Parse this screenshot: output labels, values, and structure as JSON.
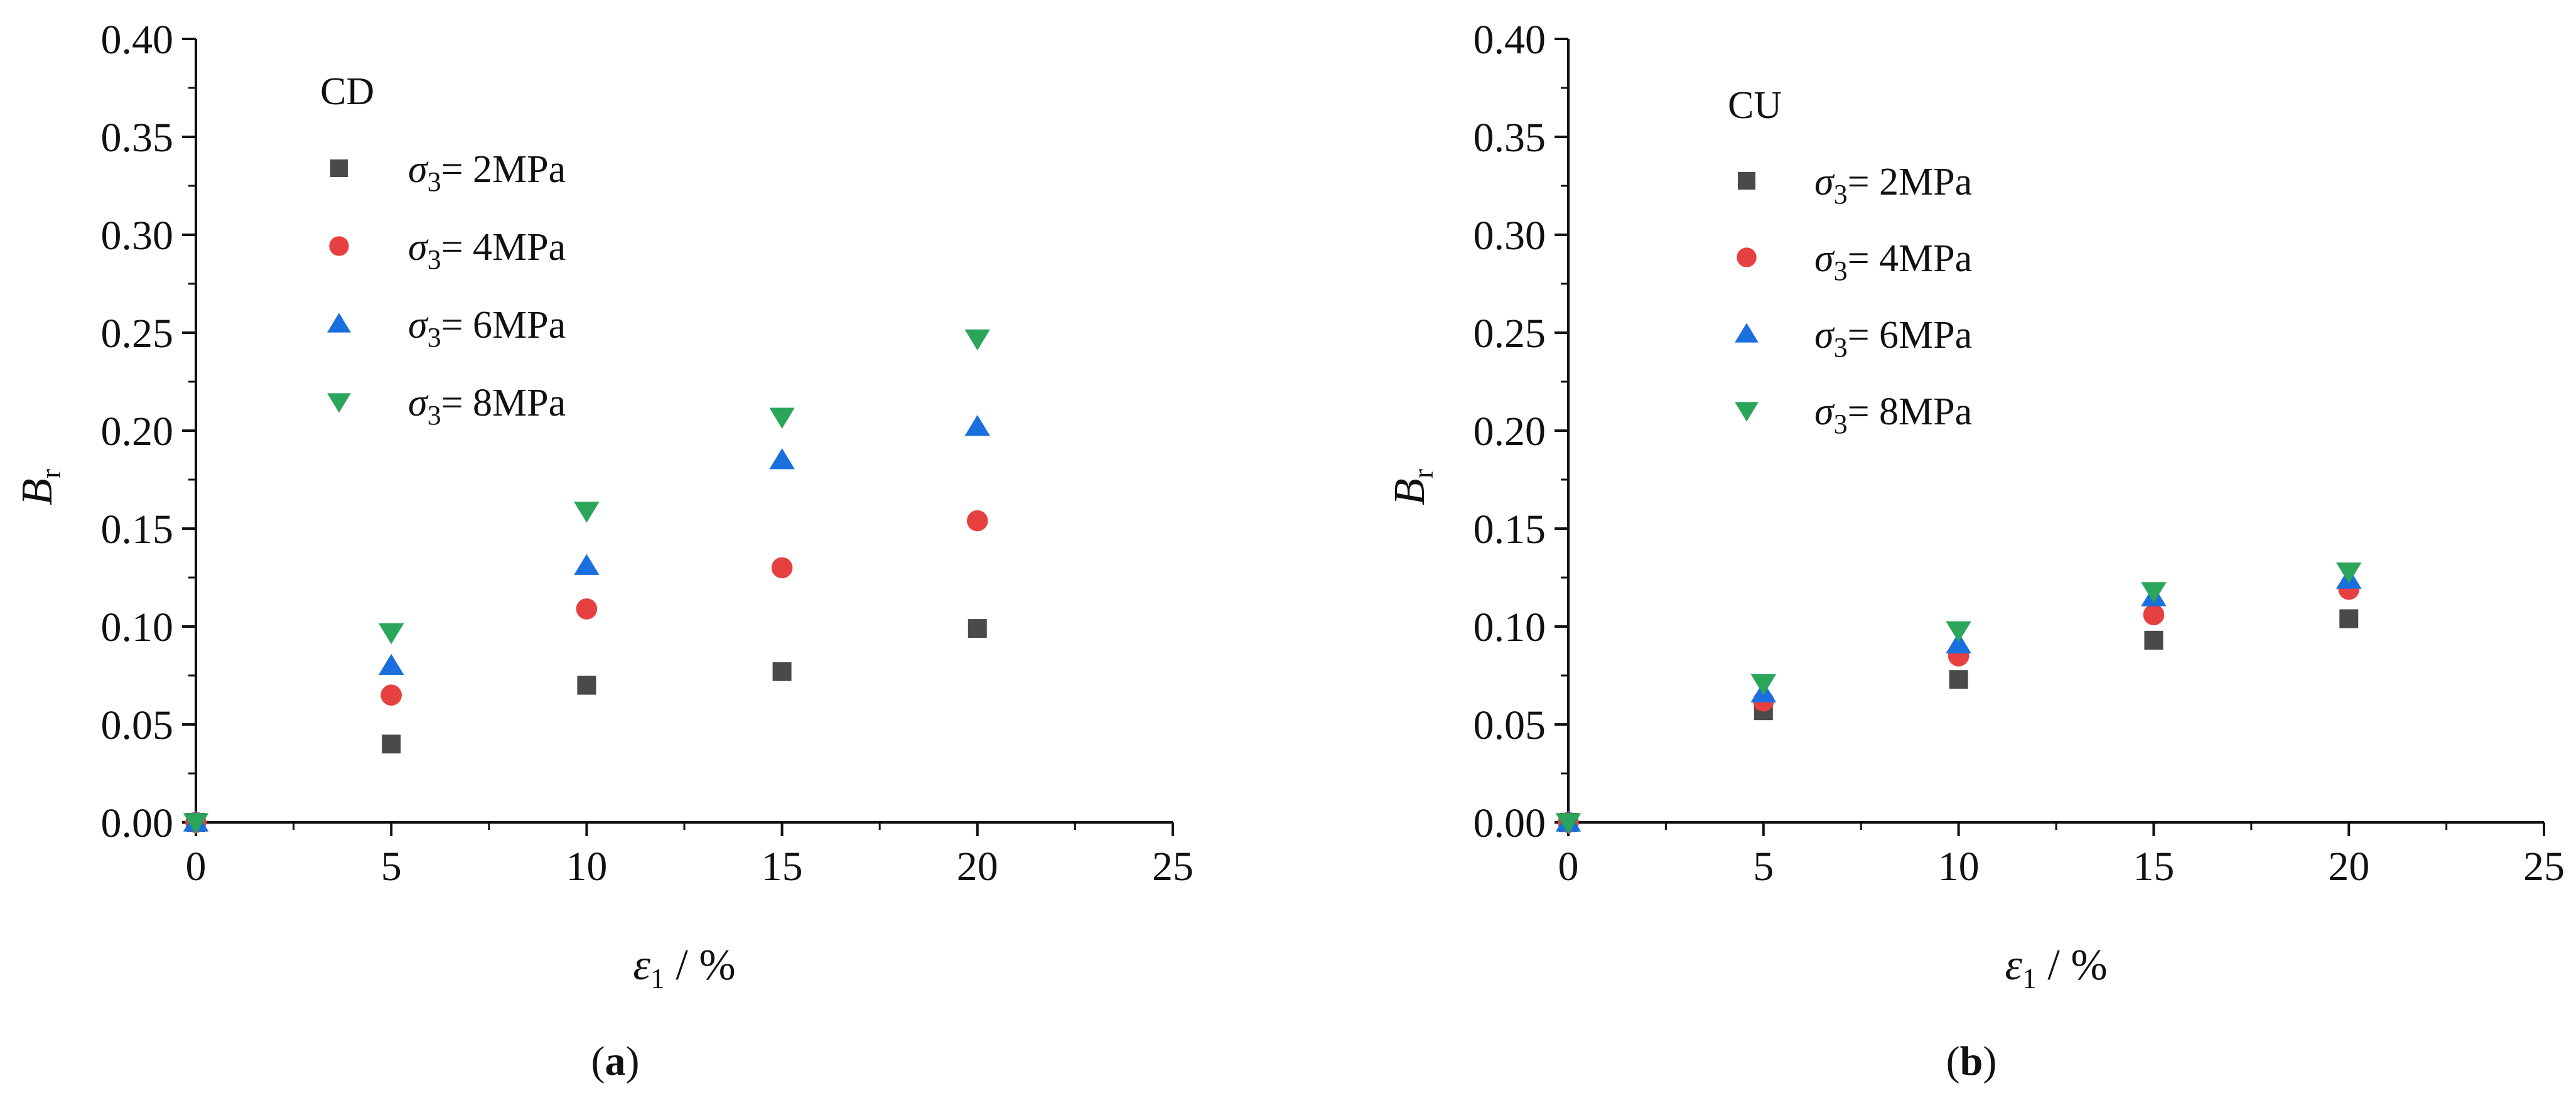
{
  "colors": {
    "s2": "#4a4a4a",
    "s4": "#e64040",
    "s6": "#1a6fdf",
    "s8": "#2aa55a",
    "axis": "#111111"
  },
  "chart_data": [
    {
      "type": "scatter",
      "panel": "a",
      "caption_label": "a",
      "group_label": "CD",
      "xlabel_symbol": "ε",
      "xlabel_sub": "1",
      "xlabel_unit": " / %",
      "ylabel_symbol": "B",
      "ylabel_sub": "r",
      "xlim": [
        0,
        25
      ],
      "ylim": [
        0,
        0.4
      ],
      "xticks": [
        "0",
        "5",
        "10",
        "15",
        "20",
        "25"
      ],
      "yticks": [
        "0.00",
        "0.05",
        "0.10",
        "0.15",
        "0.20",
        "0.25",
        "0.30",
        "0.35",
        "0.40"
      ],
      "legend_position": "upper-left",
      "series": [
        {
          "name": "σ3= 2MPa",
          "marker": "square",
          "color_key": "s2",
          "points": [
            [
              0,
              0
            ],
            [
              5,
              0.04
            ],
            [
              10,
              0.07
            ],
            [
              15,
              0.077
            ],
            [
              20,
              0.099
            ]
          ]
        },
        {
          "name": "σ3= 4MPa",
          "marker": "circle",
          "color_key": "s4",
          "points": [
            [
              0,
              0
            ],
            [
              5,
              0.065
            ],
            [
              10,
              0.109
            ],
            [
              15,
              0.13
            ],
            [
              20,
              0.154
            ]
          ]
        },
        {
          "name": "σ3= 6MPa",
          "marker": "triangle-up",
          "color_key": "s6",
          "points": [
            [
              0,
              0
            ],
            [
              5,
              0.08
            ],
            [
              10,
              0.131
            ],
            [
              15,
              0.185
            ],
            [
              20,
              0.202
            ]
          ]
        },
        {
          "name": "σ3= 8MPa",
          "marker": "triangle-down",
          "color_key": "s8",
          "points": [
            [
              0,
              0
            ],
            [
              5,
              0.097
            ],
            [
              10,
              0.159
            ],
            [
              15,
              0.207
            ],
            [
              20,
              0.247
            ]
          ]
        }
      ]
    },
    {
      "type": "scatter",
      "panel": "b",
      "caption_label": "b",
      "group_label": "CU",
      "xlabel_symbol": "ε",
      "xlabel_sub": "1",
      "xlabel_unit": " / %",
      "ylabel_symbol": "B",
      "ylabel_sub": "r",
      "xlim": [
        0,
        25
      ],
      "ylim": [
        0,
        0.4
      ],
      "xticks": [
        "0",
        "5",
        "10",
        "15",
        "20",
        "25"
      ],
      "yticks": [
        "0.00",
        "0.05",
        "0.10",
        "0.15",
        "0.20",
        "0.25",
        "0.30",
        "0.35",
        "0.40"
      ],
      "legend_position": "upper-left",
      "series": [
        {
          "name": "σ3= 2MPa",
          "marker": "square",
          "color_key": "s2",
          "points": [
            [
              0,
              0
            ],
            [
              5,
              0.057
            ],
            [
              10,
              0.073
            ],
            [
              15,
              0.093
            ],
            [
              20,
              0.104
            ]
          ]
        },
        {
          "name": "σ3= 4MPa",
          "marker": "circle",
          "color_key": "s4",
          "points": [
            [
              0,
              0
            ],
            [
              5,
              0.062
            ],
            [
              10,
              0.085
            ],
            [
              15,
              0.106
            ],
            [
              20,
              0.119
            ]
          ]
        },
        {
          "name": "σ3= 6MPa",
          "marker": "triangle-up",
          "color_key": "s6",
          "points": [
            [
              0,
              0
            ],
            [
              5,
              0.066
            ],
            [
              10,
              0.091
            ],
            [
              15,
              0.115
            ],
            [
              20,
              0.124
            ]
          ]
        },
        {
          "name": "σ3= 8MPa",
          "marker": "triangle-down",
          "color_key": "s8",
          "points": [
            [
              0,
              0
            ],
            [
              5,
              0.071
            ],
            [
              10,
              0.098
            ],
            [
              15,
              0.118
            ],
            [
              20,
              0.128
            ]
          ]
        }
      ]
    }
  ]
}
